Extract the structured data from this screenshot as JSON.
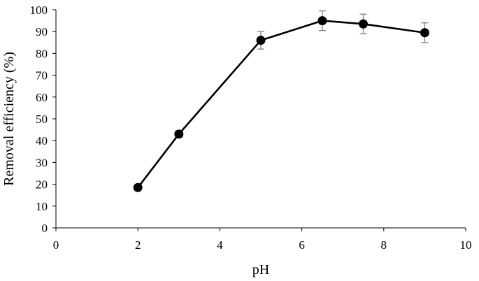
{
  "chart_data": {
    "type": "scatter",
    "title": "",
    "xlabel": "pH",
    "ylabel": "Removal efficiency (%)",
    "xlim": [
      0,
      10
    ],
    "ylim": [
      0,
      100
    ],
    "xticks": [
      0,
      2,
      4,
      6,
      8,
      10
    ],
    "yticks": [
      0,
      10,
      20,
      30,
      40,
      50,
      60,
      70,
      80,
      90,
      100
    ],
    "grid": false,
    "legend": "none",
    "series": [
      {
        "x": [
          2,
          3,
          5,
          6.5,
          7.5,
          9
        ],
        "y": [
          18.5,
          43,
          86,
          95,
          93.5,
          89.5
        ],
        "error": [
          0.8,
          1.5,
          4.0,
          4.5,
          4.5,
          4.5
        ],
        "color": "#000000",
        "error_color": "#7f7f7f",
        "marker": "circle",
        "line": "solid"
      }
    ]
  }
}
